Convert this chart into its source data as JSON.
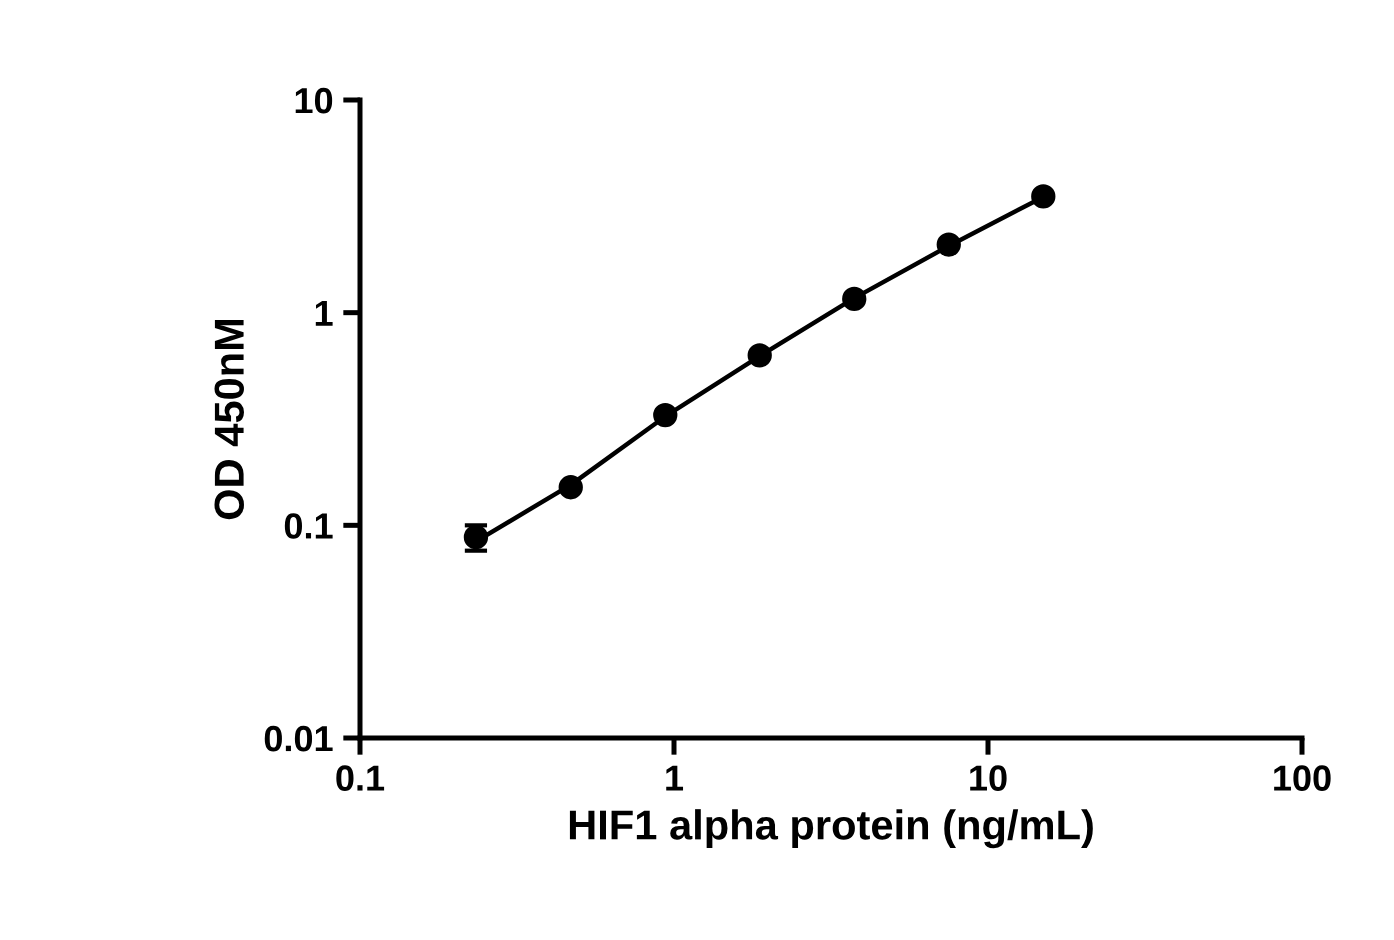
{
  "chart_data": {
    "type": "scatter",
    "xlabel": "HIF1 alpha protein (ng/mL)",
    "ylabel": "OD 450nM",
    "log": "xy",
    "xlim": [
      0.1,
      100
    ],
    "ylim": [
      0.01,
      10
    ],
    "xticks": [
      0.1,
      1,
      10,
      100
    ],
    "yticks": [
      0.01,
      0.1,
      1,
      10
    ],
    "grid": false,
    "series": [
      {
        "marker": "circle",
        "color": "#000000",
        "x": [
          0.234,
          0.469,
          0.938,
          1.875,
          3.75,
          7.5,
          15
        ],
        "values": [
          0.088,
          0.151,
          0.33,
          0.63,
          1.16,
          2.09,
          3.52
        ],
        "errors": [
          0.012,
          null,
          null,
          null,
          null,
          null,
          null
        ]
      },
      {
        "type": "line",
        "marker": "none",
        "color": "#000000",
        "x": [
          0.234,
          0.469,
          0.938,
          1.875,
          3.75,
          7.5,
          15
        ],
        "values": [
          0.084,
          0.155,
          0.325,
          0.625,
          1.17,
          2.06,
          3.5
        ]
      }
    ]
  }
}
